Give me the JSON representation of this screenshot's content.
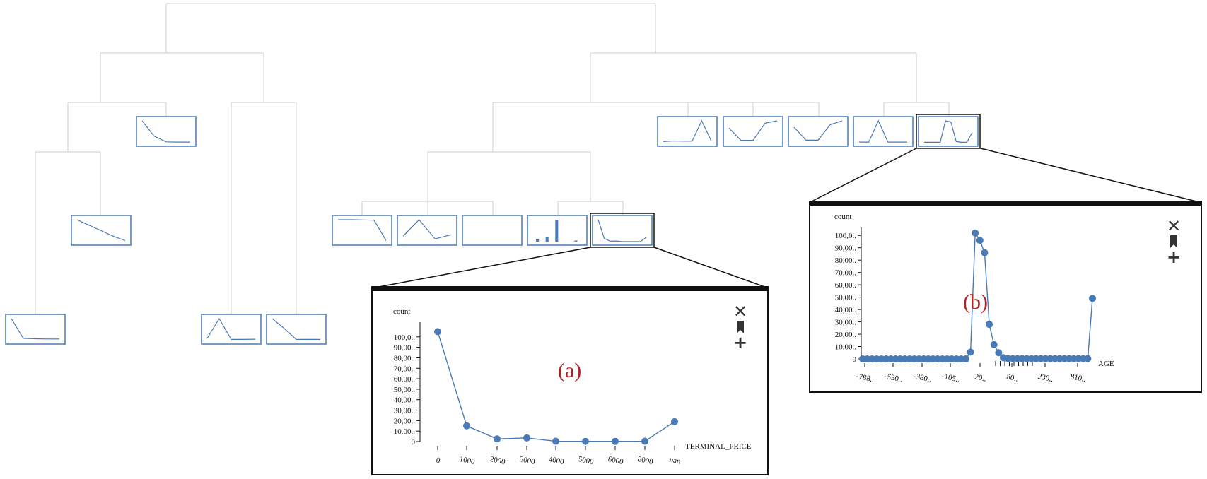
{
  "tree": {
    "thumbnails": [
      {
        "id": "n1",
        "kind": "line",
        "values": [
          100,
          30,
          4,
          3,
          3
        ]
      },
      {
        "id": "n2",
        "kind": "line",
        "values": [
          100,
          75,
          50,
          25,
          5
        ]
      },
      {
        "id": "n3",
        "kind": "line",
        "values": [
          100,
          10,
          8,
          7,
          7
        ]
      },
      {
        "id": "n4",
        "kind": "line",
        "values": [
          10,
          100,
          5,
          5,
          6
        ]
      },
      {
        "id": "n5",
        "kind": "line",
        "values": [
          100,
          55,
          5,
          5,
          5
        ]
      },
      {
        "id": "n6",
        "kind": "line",
        "values": [
          95,
          95,
          94,
          93,
          5
        ]
      },
      {
        "id": "n7",
        "kind": "line",
        "values": [
          20,
          80,
          10,
          25
        ]
      },
      {
        "id": "n8",
        "kind": "empty",
        "values": []
      },
      {
        "id": "n9",
        "kind": "bar",
        "values": [
          10,
          20,
          100,
          0,
          5
        ]
      },
      {
        "id": "n10",
        "kind": "line",
        "values": [
          100,
          15,
          2,
          3,
          0,
          0,
          0,
          0,
          19
        ]
      },
      {
        "id": "n11",
        "kind": "line",
        "values": [
          5,
          8,
          7,
          7,
          100,
          8
        ]
      },
      {
        "id": "n12",
        "kind": "line",
        "values": [
          60,
          10,
          10,
          80,
          90
        ]
      },
      {
        "id": "n13",
        "kind": "line",
        "values": [
          60,
          10,
          10,
          70,
          85
        ]
      },
      {
        "id": "n14",
        "kind": "line",
        "values": [
          3,
          3,
          100,
          3,
          3,
          3
        ]
      },
      {
        "id": "n15",
        "kind": "line",
        "values": [
          2,
          2,
          2,
          2,
          100,
          95,
          5,
          2,
          2,
          48
        ]
      }
    ]
  },
  "panel_a": {
    "label": "(a)",
    "controls": {
      "close_icon": "✕",
      "add_icon": "+"
    }
  },
  "panel_b": {
    "label": "(b)",
    "controls": {
      "close_icon": "✕",
      "add_icon": "+"
    }
  },
  "chart_data": [
    {
      "type": "line",
      "ylabel": "count",
      "xlabel": "TERMINAL_PRICE",
      "x_tick_labels": [
        "0",
        "1000",
        "2000",
        "3000",
        "4000",
        "5000",
        "6000",
        "8000",
        "nan"
      ],
      "y_tick_labels": [
        "0",
        "10,00..",
        "20,00..",
        "30,00..",
        "40,00..",
        "50,00..",
        "60,00..",
        "70,00..",
        "80,00..",
        "90,00..",
        "100,0.."
      ],
      "ylim": [
        0,
        110000
      ],
      "values": [
        105000,
        15000,
        2500,
        3500,
        300,
        200,
        200,
        300,
        19000
      ],
      "color": "#4a7ab5"
    },
    {
      "type": "line",
      "ylabel": "count",
      "xlabel": "AGE",
      "x_tick_labels": [
        "-788..",
        "-530..",
        "-380..",
        "-105..",
        "20..",
        "80..",
        "230..",
        "810.."
      ],
      "y_tick_labels": [
        "0",
        "10,00..",
        "20,00..",
        "30,00..",
        "40,00..",
        "50,00..",
        "60,00..",
        "70,00..",
        "80,00..",
        "90,00..",
        "100,0.."
      ],
      "ylim": [
        0,
        103000
      ],
      "values": [
        0,
        0,
        0,
        0,
        0,
        0,
        0,
        0,
        0,
        0,
        0,
        0,
        0,
        0,
        0,
        0,
        0,
        0,
        0,
        0,
        0,
        0,
        0,
        5500,
        102000,
        96000,
        86000,
        28000,
        11500,
        5000,
        1000,
        300,
        200,
        200,
        200,
        200,
        200,
        200,
        200,
        200,
        200,
        200,
        200,
        200,
        200,
        200,
        200,
        200,
        200,
        49000
      ],
      "color": "#4a7ab5"
    }
  ]
}
